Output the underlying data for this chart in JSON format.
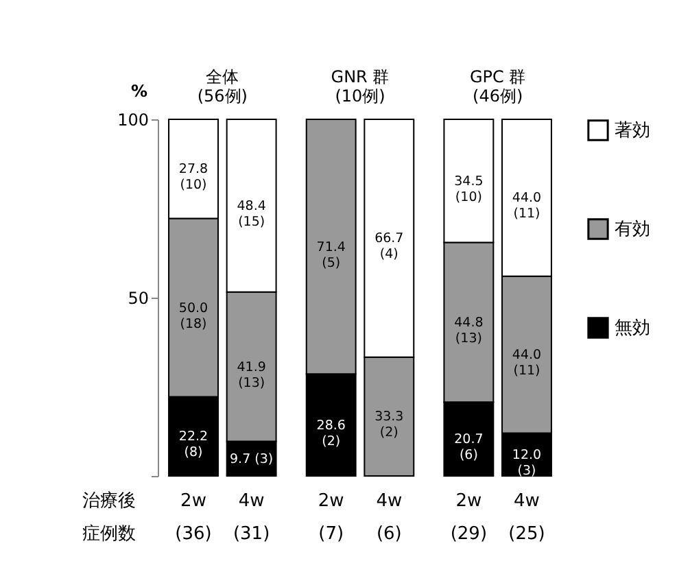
{
  "chart_data": {
    "type": "bar",
    "stacked": true,
    "ylabel": "%",
    "categories": [
      "2w",
      "4w",
      "2w",
      "4w",
      "2w",
      "4w"
    ],
    "series": [
      {
        "name": "無効",
        "color": "#000000",
        "values": [
          22.2,
          9.7,
          28.6,
          0,
          20.7,
          12.0
        ],
        "value_labels": [
          "22.2\n(8)",
          "9.7 (3)",
          "28.6\n(2)",
          null,
          "20.7\n(6)",
          "12.0\n(3)"
        ]
      },
      {
        "name": "有効",
        "color": "#999999",
        "values": [
          50.0,
          41.9,
          71.4,
          33.3,
          44.8,
          44.0
        ],
        "value_labels": [
          "50.0\n(18)",
          "41.9\n(13)",
          "71.4\n(5)",
          "33.3\n(2)",
          "44.8\n(13)",
          "44.0\n(11)"
        ]
      },
      {
        "name": "著効",
        "color": "#ffffff",
        "values": [
          27.8,
          48.4,
          0,
          66.7,
          34.5,
          44.0
        ],
        "value_labels": [
          "27.8\n(10)",
          "48.4\n(15)",
          null,
          "66.7\n(4)",
          "34.5\n(10)",
          "44.0\n(11)"
        ]
      }
    ],
    "ylim": [
      0,
      100
    ],
    "yticks": [
      {
        "value": 0,
        "label": null
      },
      50,
      100
    ],
    "legend": "right",
    "grid": false,
    "annotations": [
      "全体\n(56例)",
      "GNR 群\n(10例)",
      "GPC 群\n(46例)",
      "治療後",
      "症例数",
      "(36)",
      "(31)",
      "(7)",
      "(6)",
      "(29)",
      "(25)"
    ]
  }
}
